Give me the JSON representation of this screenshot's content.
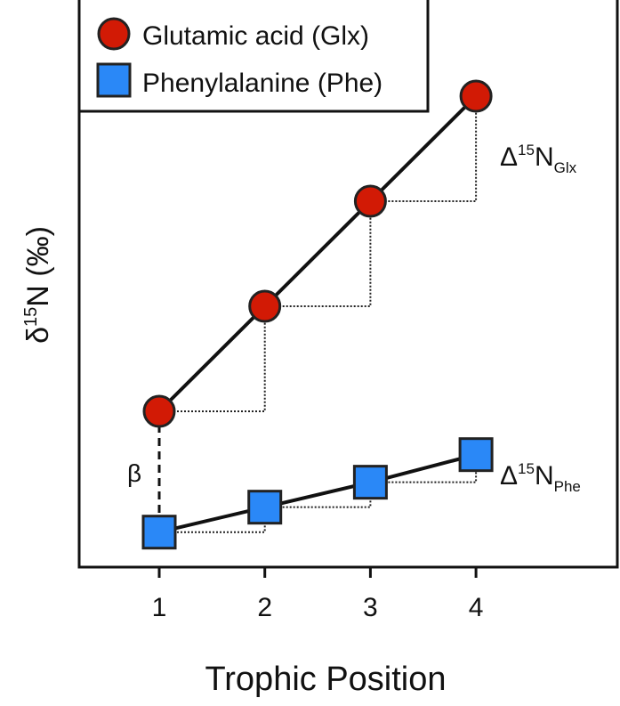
{
  "chart_data": {
    "type": "line",
    "title": "",
    "xlabel": "Trophic Position",
    "ylabel": "δ15N (‰)",
    "ylabel_parts": {
      "prefix": "δ",
      "sup": "15",
      "rest": "N (‰)"
    },
    "x": [
      1,
      2,
      3,
      4
    ],
    "x_tick_labels": [
      "1",
      "2",
      "3",
      "4"
    ],
    "xlim": [
      0.25,
      5.4
    ],
    "y_units": "relative (no tick labels shown)",
    "series": [
      {
        "name": "Glutamic acid (Glx)",
        "marker": "circle",
        "color": "#d21a05",
        "values": [
          8,
          12,
          16,
          20
        ]
      },
      {
        "name": "Phenylalanine (Phe)",
        "marker": "square",
        "color": "#2a88f7",
        "values": [
          3.4,
          4.35,
          5.3,
          6.35
        ]
      }
    ],
    "legend_position": "top-left",
    "annotations": {
      "glx_delta": {
        "base": "Δ",
        "sup": "15",
        "main": "N",
        "sub": "Glx"
      },
      "phe_delta": {
        "base": "Δ",
        "sup": "15",
        "main": "N",
        "sub": "Phe"
      },
      "beta": "β"
    }
  }
}
